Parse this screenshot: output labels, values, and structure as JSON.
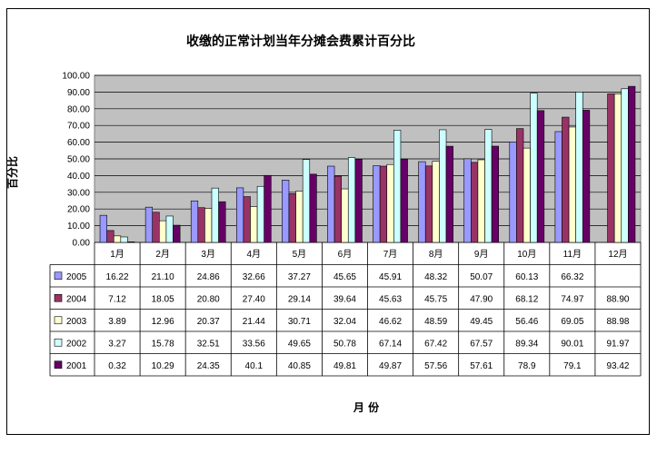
{
  "chart_data": {
    "type": "bar",
    "title": "收缴的正常计划当年分摊会费累计百分比",
    "xlabel": "月  份",
    "ylabel": "百分比",
    "ylim": [
      0,
      100
    ],
    "yticks": [
      "0.00",
      "10.00",
      "20.00",
      "30.00",
      "40.00",
      "50.00",
      "60.00",
      "70.00",
      "80.00",
      "90.00",
      "100.00"
    ],
    "grid": true,
    "legend": "data-table-left",
    "categories": [
      "1月",
      "2月",
      "3月",
      "4月",
      "5月",
      "6月",
      "7月",
      "8月",
      "9月",
      "10月",
      "11月",
      "12月"
    ],
    "series": [
      {
        "name": "2005",
        "color": "#9999ff",
        "values": [
          16.22,
          21.1,
          24.86,
          32.66,
          37.27,
          45.65,
          45.91,
          48.32,
          50.07,
          60.13,
          66.32,
          null
        ],
        "labels": [
          "16.22",
          "21.10",
          "24.86",
          "32.66",
          "37.27",
          "45.65",
          "45.91",
          "48.32",
          "50.07",
          "60.13",
          "66.32",
          ""
        ]
      },
      {
        "name": "2004",
        "color": "#993366",
        "values": [
          7.12,
          18.05,
          20.8,
          27.4,
          29.14,
          39.64,
          45.63,
          45.75,
          47.9,
          68.12,
          74.97,
          88.9
        ],
        "labels": [
          "7.12",
          "18.05",
          "20.80",
          "27.40",
          "29.14",
          "39.64",
          "45.63",
          "45.75",
          "47.90",
          "68.12",
          "74.97",
          "88.90"
        ]
      },
      {
        "name": "2003",
        "color": "#ffffcc",
        "values": [
          3.89,
          12.96,
          20.37,
          21.44,
          30.71,
          32.04,
          46.62,
          48.59,
          49.45,
          56.46,
          69.05,
          88.98
        ],
        "labels": [
          "3.89",
          "12.96",
          "20.37",
          "21.44",
          "30.71",
          "32.04",
          "46.62",
          "48.59",
          "49.45",
          "56.46",
          "69.05",
          "88.98"
        ]
      },
      {
        "name": "2002",
        "color": "#ccffff",
        "values": [
          3.27,
          15.78,
          32.51,
          33.56,
          49.65,
          50.78,
          67.14,
          67.42,
          67.57,
          89.34,
          90.01,
          91.97
        ],
        "labels": [
          "3.27",
          "15.78",
          "32.51",
          "33.56",
          "49.65",
          "50.78",
          "67.14",
          "67.42",
          "67.57",
          "89.34",
          "90.01",
          "91.97"
        ]
      },
      {
        "name": "2001",
        "color": "#660066",
        "values": [
          0.32,
          10.29,
          24.35,
          40.1,
          40.85,
          49.81,
          49.87,
          57.56,
          57.61,
          78.9,
          79.1,
          93.42
        ],
        "labels": [
          "0.32",
          "10.29",
          "24.35",
          "40.1",
          "40.85",
          "49.81",
          "49.87",
          "57.56",
          "57.61",
          "78.9",
          "79.1",
          "93.42"
        ]
      }
    ],
    "colors": {
      "plot_bg": "#c0c0c0",
      "grid": "#000000"
    }
  }
}
